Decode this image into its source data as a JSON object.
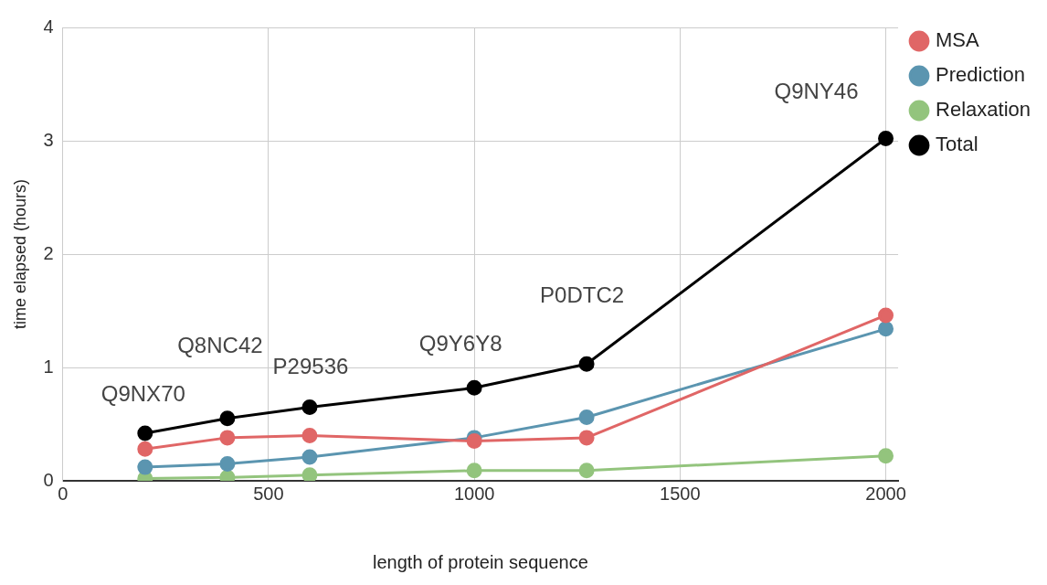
{
  "chart_data": {
    "type": "line",
    "xlabel": "length of protein sequence",
    "ylabel": "time elapsed (hours)",
    "x": [
      200,
      400,
      600,
      1000,
      1273,
      2000
    ],
    "series": [
      {
        "name": "MSA",
        "color": "#e06666",
        "values": [
          0.28,
          0.38,
          0.4,
          0.35,
          0.38,
          1.46
        ]
      },
      {
        "name": "Prediction",
        "color": "#5b95b0",
        "values": [
          0.12,
          0.15,
          0.21,
          0.38,
          0.56,
          1.34
        ]
      },
      {
        "name": "Relaxation",
        "color": "#93c47d",
        "values": [
          0.02,
          0.03,
          0.05,
          0.09,
          0.09,
          0.22
        ]
      },
      {
        "name": "Total",
        "color": "#000000",
        "values": [
          0.42,
          0.55,
          0.65,
          0.82,
          1.03,
          3.02
        ]
      }
    ],
    "annotations": [
      {
        "text": "Q9NX70",
        "x": 200,
        "y": 0.42
      },
      {
        "text": "Q8NC42",
        "x": 400,
        "y": 0.55
      },
      {
        "text": "P29536",
        "x": 600,
        "y": 0.65
      },
      {
        "text": "Q9Y6Y8",
        "x": 1000,
        "y": 0.82
      },
      {
        "text": "P0DTC2",
        "x": 1273,
        "y": 1.03
      },
      {
        "text": "Q9NY46",
        "x": 2000,
        "y": 3.02
      }
    ],
    "xlim": [
      0,
      2030
    ],
    "xticks": [
      0,
      500,
      1000,
      1500,
      2000
    ],
    "ylim": [
      0,
      4
    ],
    "yticks": [
      0,
      1,
      2,
      3,
      4
    ],
    "grid": true,
    "legend": "top right",
    "marker": "circle",
    "line_style": "solid"
  }
}
